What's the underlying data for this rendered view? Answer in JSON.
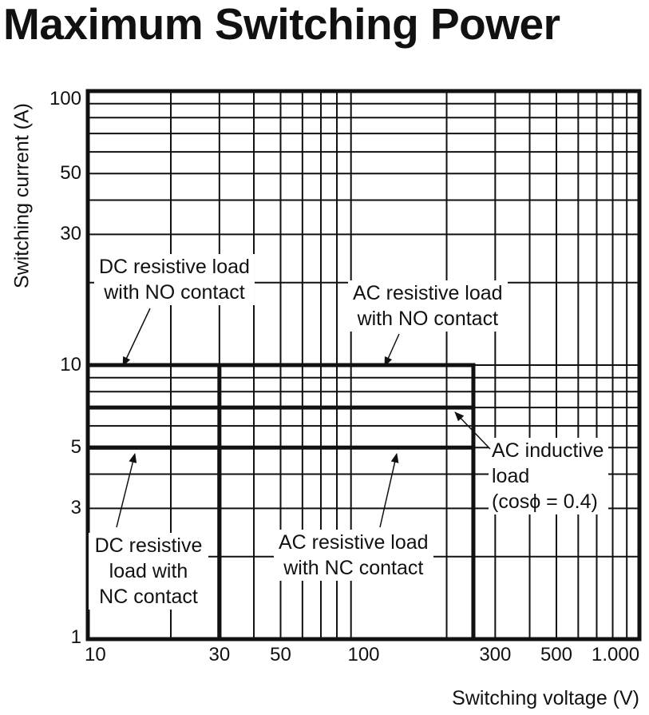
{
  "chart_data": {
    "type": "line",
    "title": "Maximum Switching Power",
    "xlabel": "Switching voltage (V)",
    "ylabel": "Switching current (A)",
    "xscale": "log",
    "yscale": "log",
    "xlim": [
      10,
      1000
    ],
    "ylim": [
      1,
      100
    ],
    "grid": true,
    "x_ticks": [
      {
        "value": 10,
        "label": "10"
      },
      {
        "value": 30,
        "label": "30"
      },
      {
        "value": 50,
        "label": "50"
      },
      {
        "value": 100,
        "label": "100"
      },
      {
        "value": 300,
        "label": "300"
      },
      {
        "value": 500,
        "label": "500"
      },
      {
        "value": 1000,
        "label": "1.000"
      }
    ],
    "y_ticks": [
      {
        "value": 1,
        "label": "1"
      },
      {
        "value": 3,
        "label": "3"
      },
      {
        "value": 5,
        "label": "5"
      },
      {
        "value": 10,
        "label": "10"
      },
      {
        "value": 30,
        "label": "30"
      },
      {
        "value": 50,
        "label": "50"
      },
      {
        "value": 100,
        "label": "100"
      }
    ],
    "series": [
      {
        "name": "DC resistive load with NO contact",
        "points": [
          [
            10,
            10
          ],
          [
            30,
            10
          ],
          [
            30,
            1
          ]
        ]
      },
      {
        "name": "AC resistive load with NO contact",
        "points": [
          [
            10,
            10
          ],
          [
            250,
            10
          ],
          [
            250,
            1
          ]
        ]
      },
      {
        "name": "AC inductive load (cosϕ = 0.4)",
        "points": [
          [
            10,
            7
          ],
          [
            250,
            7
          ],
          [
            250,
            1
          ]
        ]
      },
      {
        "name": "DC resistive load with NC contact",
        "points": [
          [
            10,
            5
          ],
          [
            30,
            5
          ],
          [
            30,
            1
          ]
        ]
      },
      {
        "name": "AC resistive load with NC contact",
        "points": [
          [
            10,
            5
          ],
          [
            250,
            5
          ],
          [
            250,
            1
          ]
        ]
      }
    ],
    "annotations": {
      "dc_no": [
        "DC resistive load",
        "with NO contact"
      ],
      "ac_no": [
        "AC resistive load",
        "with NO contact"
      ],
      "ac_ind": [
        "AC inductive",
        "load",
        "(cosϕ = 0.4)"
      ],
      "dc_nc": [
        "DC resistive",
        "load with",
        "NC contact"
      ],
      "ac_nc": [
        "AC resistive load",
        "with NC contact"
      ]
    }
  }
}
